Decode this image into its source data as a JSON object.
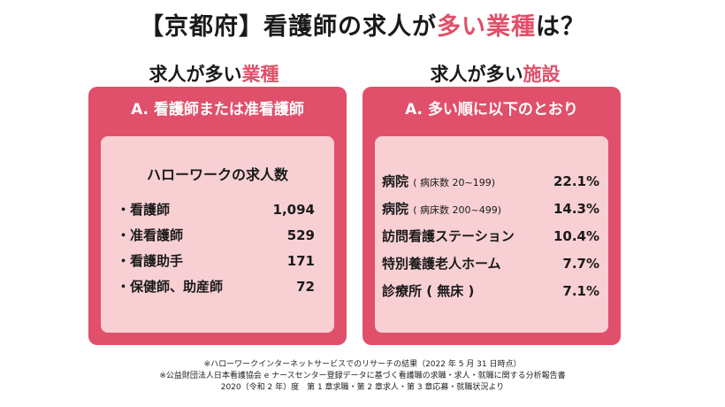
{
  "title": {
    "prefix": "【京都府】看護師の求人が",
    "accent": "多い業種",
    "suffix": "は？"
  },
  "left_column": {
    "heading_prefix": "求人が多い",
    "heading_accent": "業種",
    "panel_title": "A. 看護師または准看護師",
    "count_title": "ハローワークの求人数",
    "items": [
      {
        "label": "・看護師",
        "value": "1,094"
      },
      {
        "label": "・准看護師",
        "value": "529"
      },
      {
        "label": "・看護助手",
        "value": "171"
      },
      {
        "label": "・保健師、助産師",
        "value": "72"
      }
    ]
  },
  "right_column": {
    "heading_prefix": "求人が多い",
    "heading_accent": "施設",
    "panel_title": "A. 多い順に以下のとおり",
    "items": [
      {
        "label": "病院",
        "sub": "( 病床数 20~199)",
        "value": "22.1%"
      },
      {
        "label": "病院",
        "sub": "( 病床数 200~499)",
        "value": "14.3%"
      },
      {
        "label": "訪問看護ステーション",
        "sub": "",
        "value": "10.4%"
      },
      {
        "label": "特別養護老人ホーム",
        "sub": "",
        "value": "7.7%"
      },
      {
        "label": "診療所 ( 無床 )",
        "sub": "",
        "value": "7.1%"
      }
    ]
  },
  "notes": [
    "※ハローワークインターネットサービスでのリサーチの結果（2022 年 5 月 31 日時点）",
    "※公益財団法人日本看護協会 e ナースセンター登録データに基づく看護職の求職・求人・就職に関する分析報告書",
    "2020（令和 2 年）度　第 1 章求職・第 2 章求人・第 3 章応募・就職状況より"
  ],
  "colors": {
    "accent": "#e0506a",
    "panel_bg": "#e0506a",
    "inner_bg": "#f8d0d4"
  }
}
